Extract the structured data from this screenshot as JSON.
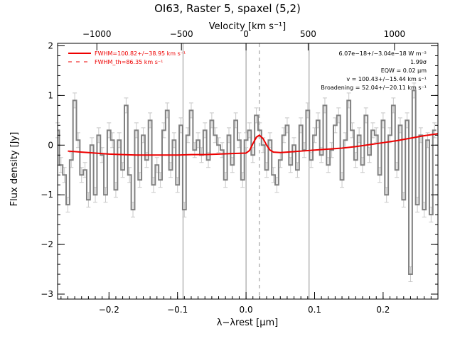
{
  "chart_data": {
    "type": "line",
    "title": "OI63, Raster 5, spaxel (5,2)",
    "xlabel": "λ−λrest [μm]",
    "ylabel": "Flux density [Jy]",
    "top_xlabel": "Velocity [km s⁻¹]",
    "xlim": [
      -0.275,
      0.28
    ],
    "ylim": [
      -3.1,
      2.05
    ],
    "xticks": [
      -0.2,
      -0.1,
      0.0,
      0.1,
      0.2
    ],
    "xtick_labels": [
      "−0.2",
      "−0.1",
      "0.0",
      "0.1",
      "0.2"
    ],
    "yticks": [
      -3,
      -2,
      -1,
      0,
      1,
      2
    ],
    "ytick_labels": [
      "−3",
      "−2",
      "−1",
      "0",
      "1",
      "2"
    ],
    "top_ticks_x": [
      -0.2177,
      -0.0943,
      0.0,
      0.0906,
      0.2166
    ],
    "top_tick_labels": [
      "−1000",
      "−500",
      "0",
      "500",
      "1000"
    ],
    "vlines_solid": [
      -0.092,
      0.0,
      0.092
    ],
    "vline_dashed": 0.0195,
    "grid": false,
    "legend_position": "top-left",
    "legend": [
      {
        "label": "FWHM=100.82+/−38.95 km s⁻¹",
        "style": "solid",
        "color": "#ee0000"
      },
      {
        "label": "FWHM_th=86.35 km s⁻¹",
        "style": "dashed",
        "color": "#ee0000"
      }
    ],
    "annotations": [
      "6.07e−18+/−3.04e−18 W m⁻²",
      "1.99σ",
      "EQW = 0.02 μm",
      "v = 100.43+/−15.44 km s⁻¹",
      "Broadening = 52.04+/−20.11 km s⁻¹"
    ],
    "colors": {
      "data": "#808080",
      "errorbar": "#c8c8c8",
      "fit": "#ee0000",
      "vline": "#909090"
    },
    "series": [
      {
        "name": "data",
        "style": "step",
        "x": [
          -0.275,
          -0.27,
          -0.265,
          -0.26,
          -0.255,
          -0.25,
          -0.245,
          -0.24,
          -0.235,
          -0.23,
          -0.225,
          -0.22,
          -0.215,
          -0.21,
          -0.205,
          -0.2,
          -0.195,
          -0.19,
          -0.185,
          -0.18,
          -0.175,
          -0.17,
          -0.165,
          -0.16,
          -0.155,
          -0.15,
          -0.145,
          -0.14,
          -0.135,
          -0.13,
          -0.125,
          -0.12,
          -0.115,
          -0.11,
          -0.105,
          -0.1,
          -0.095,
          -0.09,
          -0.085,
          -0.08,
          -0.075,
          -0.07,
          -0.065,
          -0.06,
          -0.055,
          -0.05,
          -0.045,
          -0.04,
          -0.035,
          -0.03,
          -0.025,
          -0.02,
          -0.015,
          -0.01,
          -0.005,
          0.0,
          0.005,
          0.01,
          0.015,
          0.02,
          0.025,
          0.03,
          0.035,
          0.04,
          0.045,
          0.05,
          0.055,
          0.06,
          0.065,
          0.07,
          0.075,
          0.08,
          0.085,
          0.09,
          0.095,
          0.1,
          0.105,
          0.11,
          0.115,
          0.12,
          0.125,
          0.13,
          0.135,
          0.14,
          0.145,
          0.15,
          0.155,
          0.16,
          0.165,
          0.17,
          0.175,
          0.18,
          0.185,
          0.19,
          0.195,
          0.2,
          0.205,
          0.21,
          0.215,
          0.22,
          0.225,
          0.23,
          0.235,
          0.24,
          0.245,
          0.25,
          0.255,
          0.26,
          0.265,
          0.27,
          0.275
        ],
        "y": [
          0.3,
          -0.4,
          -0.6,
          -1.2,
          -0.3,
          0.9,
          0.1,
          -0.6,
          -0.5,
          -1.1,
          0.0,
          -1.0,
          0.2,
          -0.2,
          -1.0,
          0.3,
          0.1,
          -0.9,
          0.1,
          -0.5,
          0.8,
          -0.6,
          -1.3,
          0.3,
          -0.7,
          0.2,
          -0.3,
          0.5,
          -0.8,
          -0.4,
          -0.7,
          0.3,
          0.7,
          -0.5,
          0.1,
          -0.8,
          0.4,
          -1.3,
          0.2,
          0.7,
          -0.1,
          0.1,
          -0.2,
          0.3,
          -0.3,
          0.5,
          0.2,
          0.0,
          -0.1,
          -0.7,
          0.2,
          -0.4,
          0.5,
          0.1,
          -0.7,
          0.1,
          0.3,
          -0.2,
          0.6,
          0.3,
          0.0,
          -0.5,
          0.1,
          -0.6,
          -0.8,
          -0.3,
          0.2,
          0.4,
          -0.4,
          0.0,
          -0.5,
          0.4,
          -0.1,
          0.7,
          -0.3,
          0.2,
          0.5,
          -0.2,
          0.8,
          -0.4,
          -0.1,
          0.4,
          0.6,
          -0.7,
          0.1,
          0.9,
          0.3,
          -0.3,
          0.2,
          -0.4,
          0.6,
          -0.2,
          0.3,
          0.2,
          -0.6,
          0.5,
          -1.0,
          0.2,
          0.8,
          -0.5,
          0.4,
          -1.1,
          0.5,
          -2.6,
          1.1,
          -1.2,
          0.2,
          -1.3,
          0.1,
          -1.4,
          0.3
        ],
        "errorbar": 0.15
      },
      {
        "name": "fit",
        "style": "smooth",
        "x": [
          -0.26,
          -0.24,
          -0.22,
          -0.2,
          -0.18,
          -0.16,
          -0.14,
          -0.12,
          -0.1,
          -0.08,
          -0.06,
          -0.04,
          -0.02,
          0.0,
          0.005,
          0.01,
          0.015,
          0.0195,
          0.025,
          0.03,
          0.035,
          0.04,
          0.05,
          0.06,
          0.08,
          0.1,
          0.12,
          0.14,
          0.16,
          0.18,
          0.2,
          0.22,
          0.24,
          0.26,
          0.28
        ],
        "y": [
          -0.12,
          -0.14,
          -0.16,
          -0.18,
          -0.19,
          -0.2,
          -0.2,
          -0.2,
          -0.2,
          -0.19,
          -0.19,
          -0.18,
          -0.17,
          -0.16,
          -0.11,
          0.03,
          0.16,
          0.2,
          0.13,
          0.0,
          -0.1,
          -0.14,
          -0.15,
          -0.14,
          -0.12,
          -0.1,
          -0.08,
          -0.06,
          -0.03,
          0.01,
          0.05,
          0.09,
          0.14,
          0.19,
          0.23
        ]
      },
      {
        "name": "fit_th",
        "style": "dashed",
        "x": [
          0.0,
          0.005,
          0.01,
          0.015,
          0.0195,
          0.025,
          0.03,
          0.035,
          0.04
        ],
        "y": [
          -0.16,
          -0.12,
          0.01,
          0.14,
          0.19,
          0.12,
          -0.01,
          -0.11,
          -0.14
        ]
      }
    ]
  }
}
